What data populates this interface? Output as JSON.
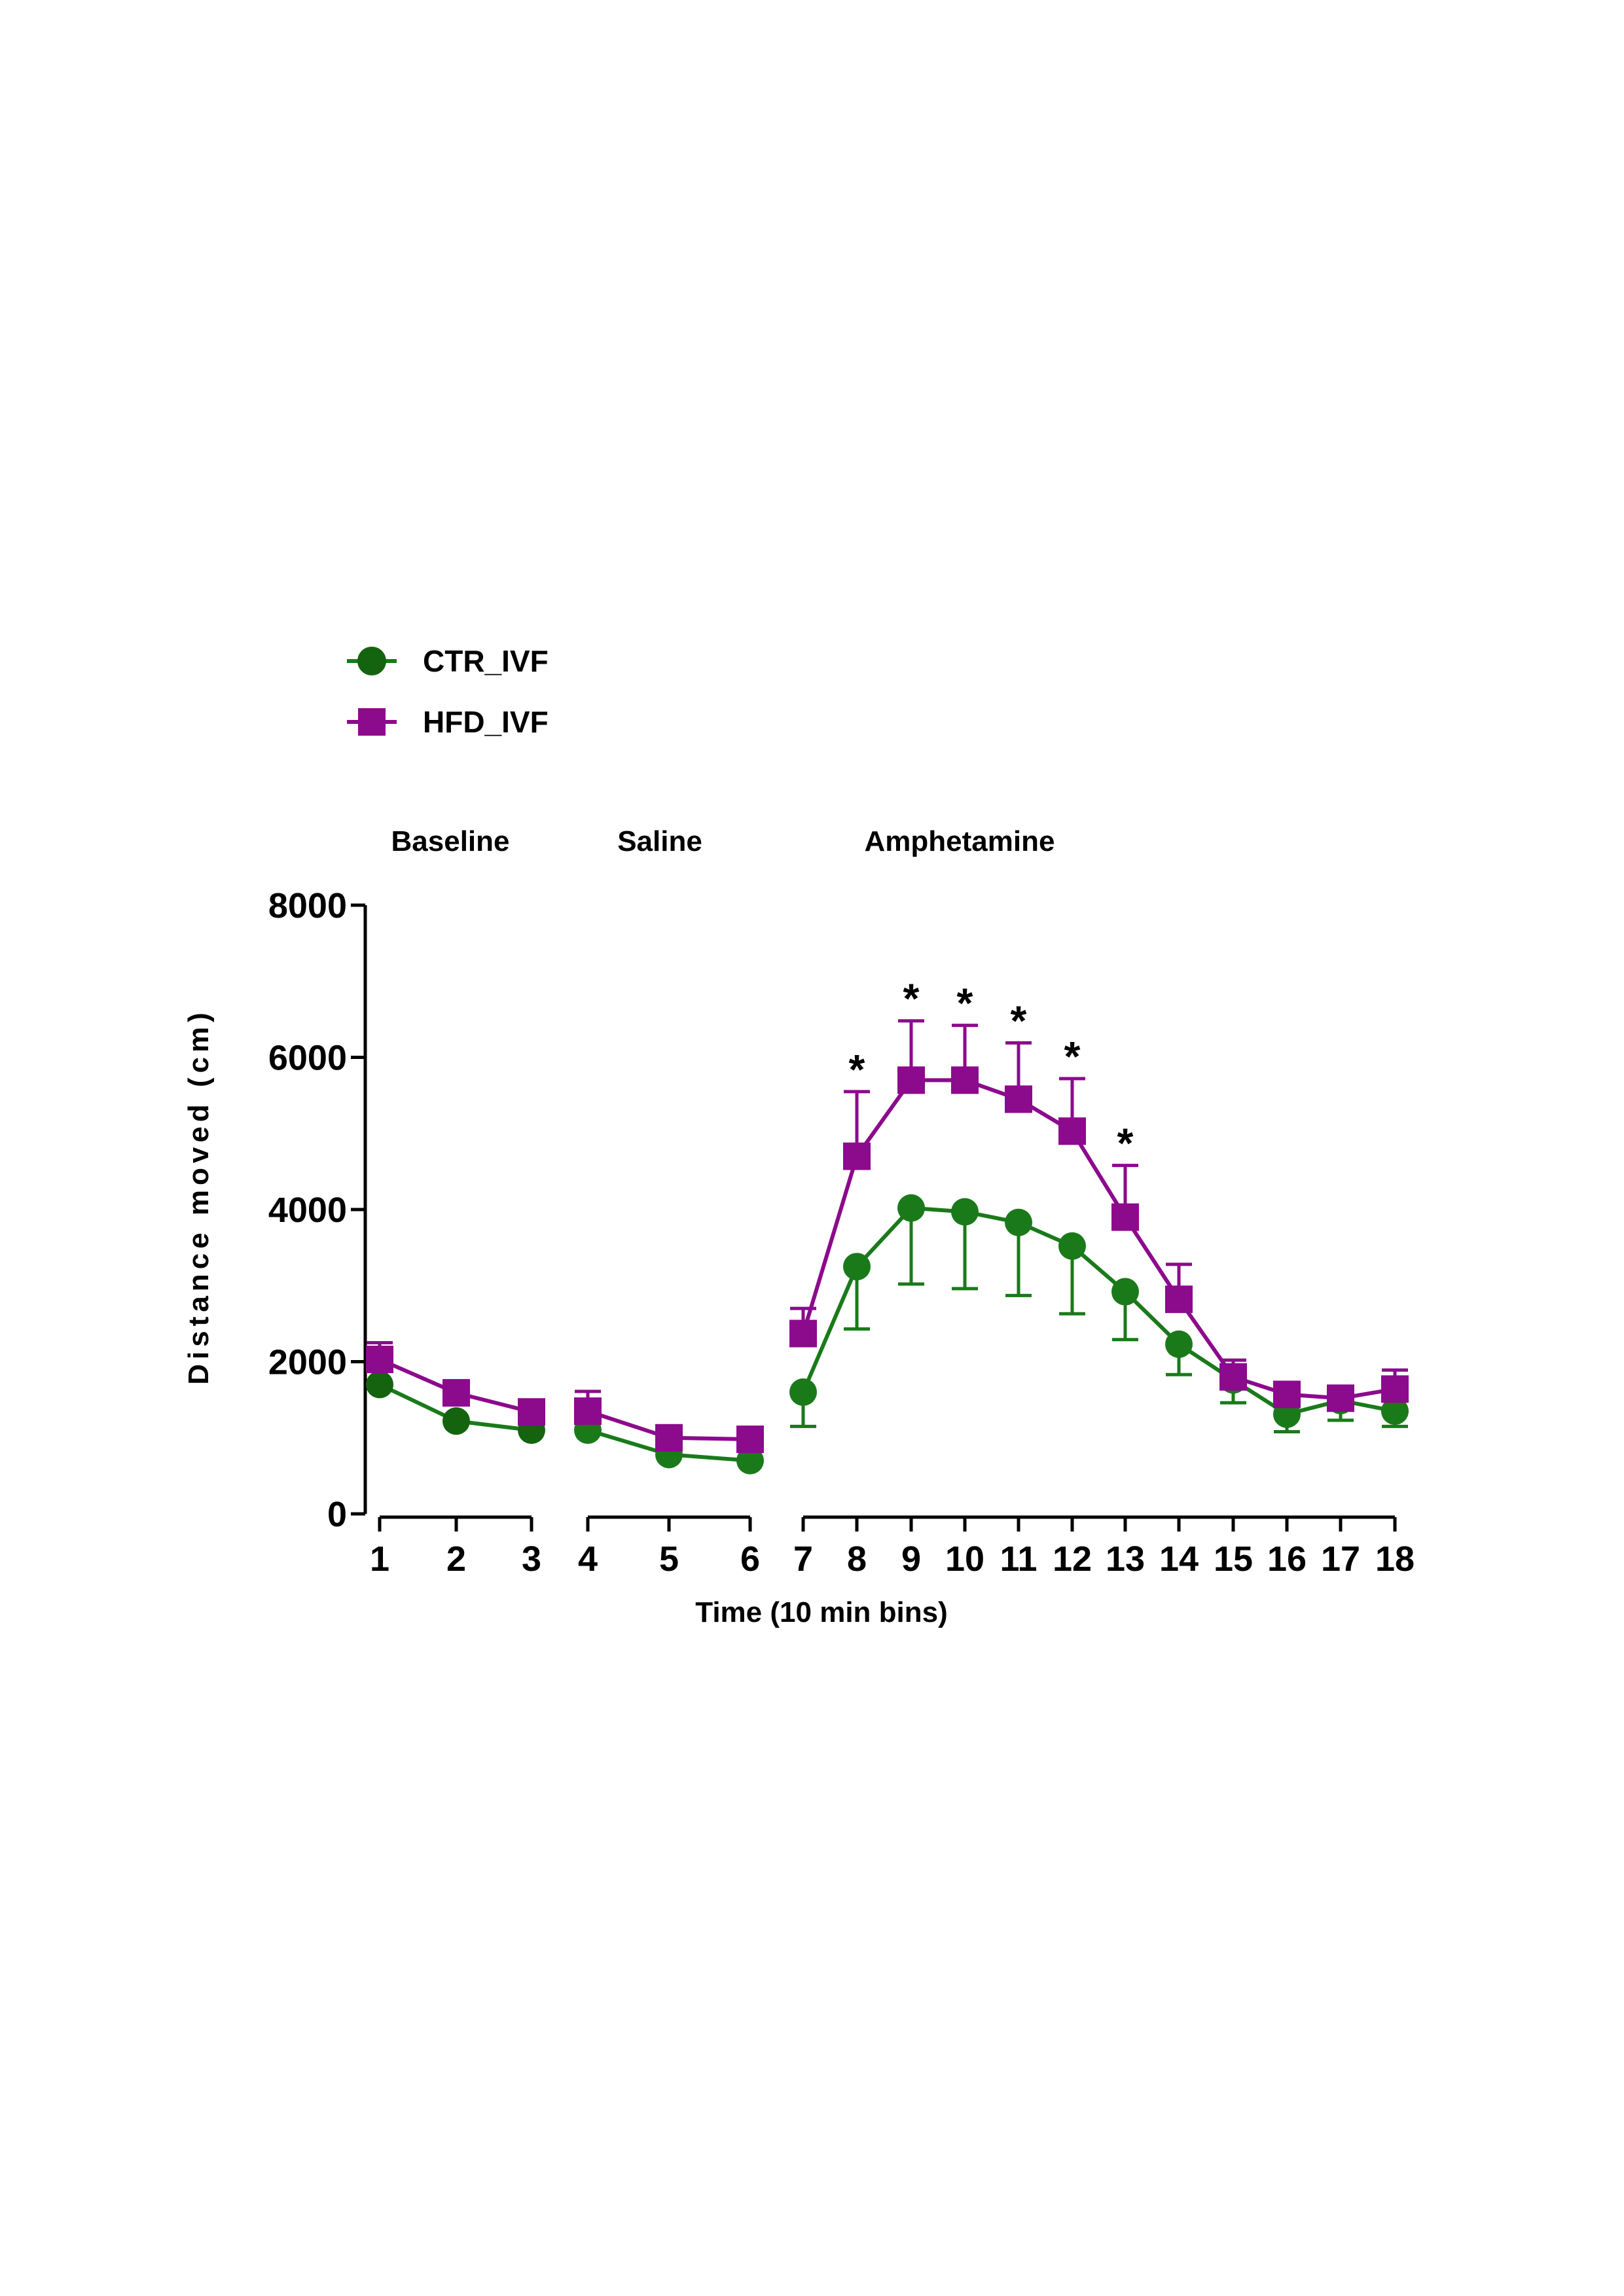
{
  "chart_data": {
    "type": "line",
    "xlabel": "Time (10 min bins)",
    "ylabel": "Distance moved (cm)",
    "ylim": [
      0,
      8000
    ],
    "yticks": [
      0,
      2000,
      4000,
      6000,
      8000
    ],
    "ytick_labels": [
      "0",
      "2000",
      "4000",
      "6000",
      "8000"
    ],
    "x": [
      1,
      2,
      3,
      4,
      5,
      6,
      7,
      8,
      9,
      10,
      11,
      12,
      13,
      14,
      15,
      16,
      17,
      18
    ],
    "x_labels": [
      "1",
      "2",
      "3",
      "4",
      "5",
      "6",
      "7",
      "8",
      "9",
      "10",
      "11",
      "12",
      "13",
      "14",
      "15",
      "16",
      "17",
      "18"
    ],
    "phases": [
      {
        "label": "Baseline",
        "bins": [
          1,
          2,
          3
        ]
      },
      {
        "label": "Saline",
        "bins": [
          4,
          5,
          6
        ]
      },
      {
        "label": "Amphetamine",
        "bins": [
          7,
          8,
          9,
          10,
          11,
          12,
          13,
          14,
          15,
          16,
          17,
          18
        ]
      }
    ],
    "legend_position": "top-left",
    "series": [
      {
        "name": "CTR_IVF",
        "marker": "circle",
        "color": "#1a7a1a",
        "values": [
          1700,
          1220,
          1100,
          1100,
          780,
          700,
          1600,
          3250,
          4020,
          3970,
          3830,
          3520,
          2920,
          2230,
          1760,
          1310,
          1490,
          1350
        ],
        "errors": [
          0,
          0,
          0,
          0,
          0,
          0,
          450,
          820,
          1000,
          1010,
          960,
          890,
          630,
          400,
          300,
          230,
          260,
          200
        ],
        "error_direction": "down"
      },
      {
        "name": "HFD_IVF",
        "marker": "square",
        "color": "#8c0a8c",
        "values": [
          2030,
          1590,
          1340,
          1350,
          1000,
          980,
          2370,
          4700,
          5700,
          5700,
          5450,
          5030,
          3900,
          2820,
          1800,
          1570,
          1520,
          1640
        ],
        "errors": [
          220,
          160,
          100,
          260,
          50,
          50,
          330,
          850,
          780,
          720,
          740,
          690,
          680,
          460,
          220,
          120,
          120,
          250
        ],
        "error_direction": "up"
      }
    ],
    "significance": {
      "marker": "*",
      "bins": [
        8,
        9,
        10,
        11,
        12,
        13
      ]
    }
  }
}
